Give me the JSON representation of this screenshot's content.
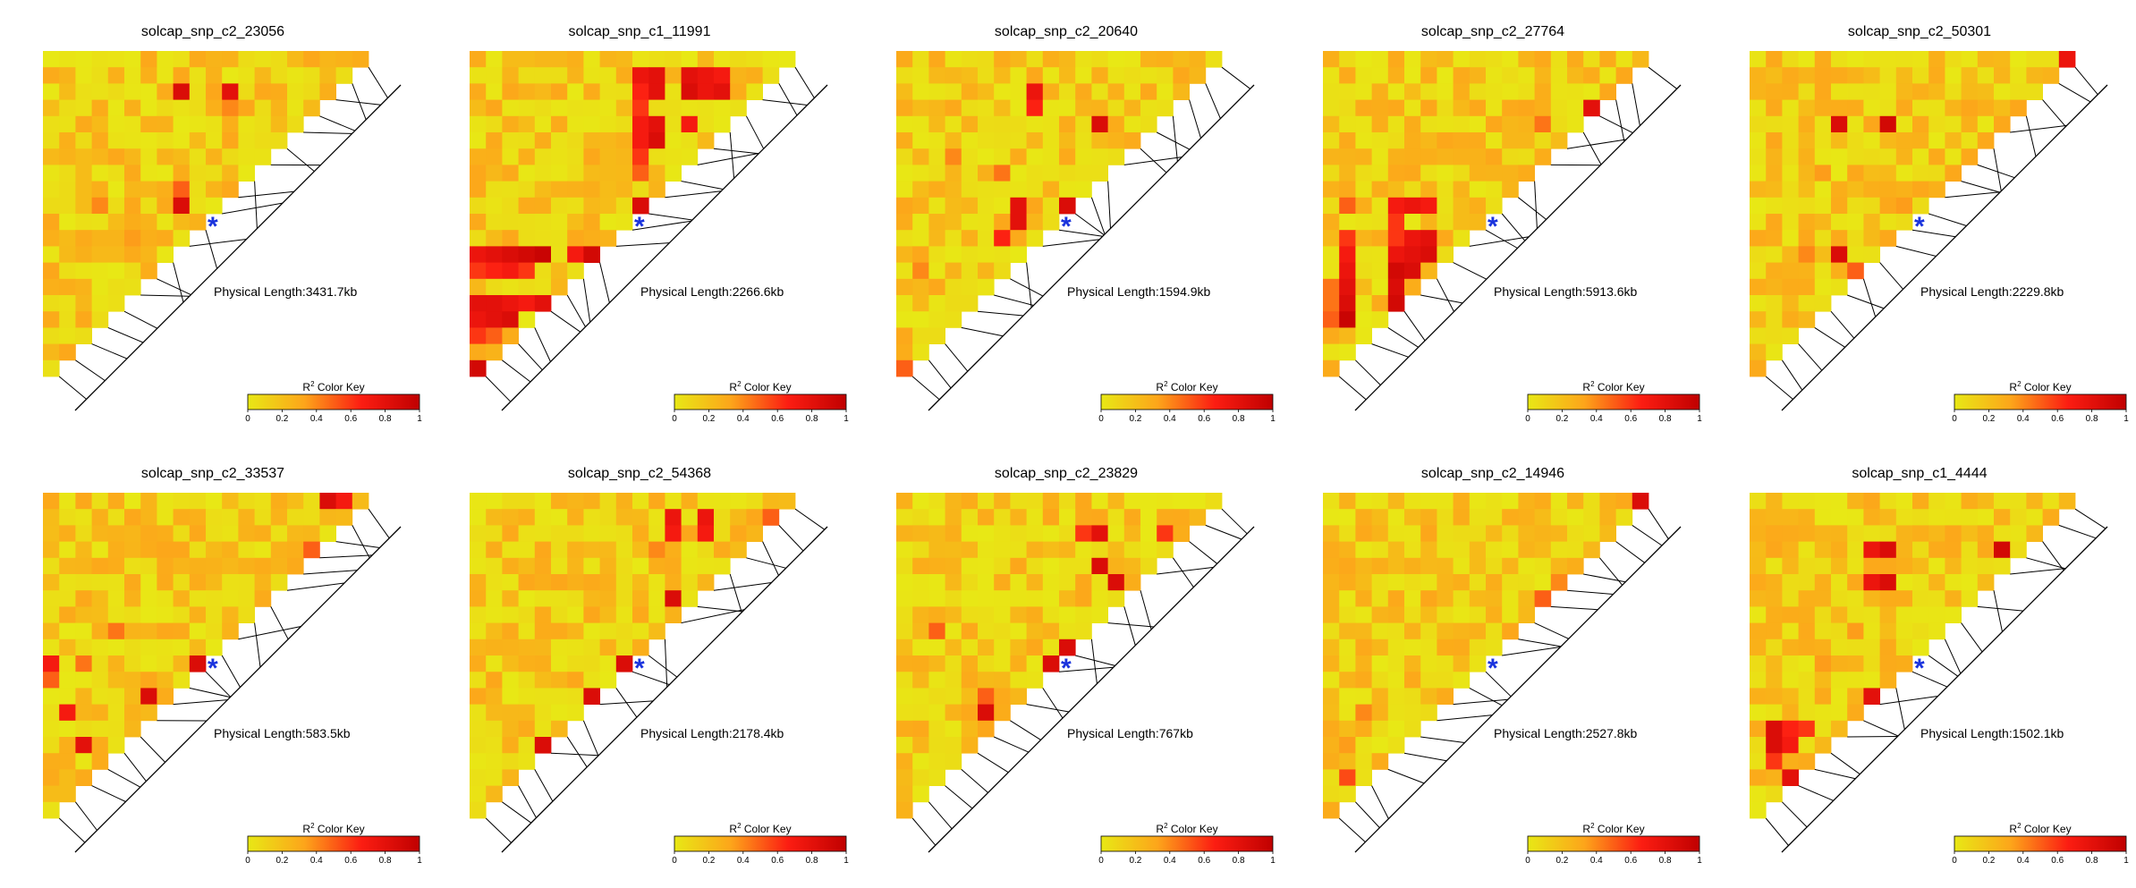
{
  "colors": {
    "ramp": [
      "#e8e815",
      "#fda51a",
      "#fc1d12",
      "#c00000"
    ],
    "marker": "#1a33dd",
    "line": "#000000"
  },
  "chart_data": [
    {
      "type": "heatmap",
      "title": "solcap_snp_c2_23056",
      "physical_length_label": "Physical Length:3431.7kb",
      "n_markers": 20,
      "focal_index": 10,
      "hot_cells": [
        [
          2,
          8,
          0.85
        ],
        [
          2,
          11,
          0.8
        ],
        [
          3,
          11,
          0.4
        ],
        [
          8,
          8,
          0.5
        ],
        [
          9,
          8,
          0.85
        ],
        [
          11,
          5,
          0.35
        ],
        [
          9,
          3,
          0.4
        ]
      ],
      "color_key": {
        "title_prefix": "R",
        "title_sup": "2",
        "title_suffix": " Color Key",
        "ticks": [
          "0",
          "0.2",
          "0.4",
          "0.6",
          "0.8",
          "1"
        ]
      }
    },
    {
      "type": "heatmap",
      "title": "solcap_snp_c1_11991",
      "physical_length_label": "Physical Length:2266.6kb",
      "n_markers": 20,
      "focal_index": 10,
      "hot_cells": [
        [
          1,
          10,
          0.75
        ],
        [
          1,
          11,
          0.8
        ],
        [
          1,
          13,
          0.8
        ],
        [
          1,
          14,
          0.75
        ],
        [
          1,
          15,
          0.7
        ],
        [
          2,
          10,
          0.65
        ],
        [
          2,
          11,
          0.8
        ],
        [
          2,
          13,
          0.85
        ],
        [
          2,
          14,
          0.75
        ],
        [
          2,
          15,
          0.8
        ],
        [
          3,
          10,
          0.6
        ],
        [
          4,
          10,
          0.7
        ],
        [
          4,
          11,
          0.8
        ],
        [
          4,
          13,
          0.7
        ],
        [
          5,
          10,
          0.7
        ],
        [
          5,
          11,
          0.85
        ],
        [
          6,
          10,
          0.6
        ],
        [
          7,
          10,
          0.5
        ],
        [
          9,
          10,
          0.85
        ],
        [
          12,
          0,
          0.75
        ],
        [
          12,
          1,
          0.8
        ],
        [
          12,
          2,
          0.85
        ],
        [
          12,
          3,
          0.9
        ],
        [
          12,
          4,
          0.95
        ],
        [
          12,
          6,
          0.7
        ],
        [
          12,
          7,
          0.9
        ],
        [
          13,
          0,
          0.6
        ],
        [
          13,
          1,
          0.65
        ],
        [
          13,
          2,
          0.7
        ],
        [
          13,
          3,
          0.6
        ],
        [
          15,
          0,
          0.8
        ],
        [
          15,
          1,
          0.8
        ],
        [
          15,
          2,
          0.75
        ],
        [
          15,
          3,
          0.7
        ],
        [
          15,
          4,
          0.8
        ],
        [
          16,
          0,
          0.75
        ],
        [
          16,
          1,
          0.8
        ],
        [
          16,
          2,
          0.85
        ],
        [
          17,
          0,
          0.6
        ],
        [
          17,
          1,
          0.5
        ],
        [
          19,
          0,
          0.9
        ]
      ],
      "color_key": {
        "title_prefix": "R",
        "title_sup": "2",
        "title_suffix": " Color Key",
        "ticks": [
          "0",
          "0.2",
          "0.4",
          "0.6",
          "0.8",
          "1"
        ]
      }
    },
    {
      "type": "heatmap",
      "title": "solcap_snp_c2_20640",
      "physical_length_label": "Physical Length:1594.9kb",
      "n_markers": 20,
      "focal_index": 10,
      "hot_cells": [
        [
          2,
          8,
          0.75
        ],
        [
          3,
          8,
          0.65
        ],
        [
          4,
          12,
          0.85
        ],
        [
          9,
          7,
          0.8
        ],
        [
          10,
          7,
          0.8
        ],
        [
          9,
          10,
          0.85
        ],
        [
          11,
          6,
          0.65
        ],
        [
          7,
          6,
          0.45
        ],
        [
          19,
          0,
          0.5
        ],
        [
          13,
          1,
          0.4
        ],
        [
          6,
          3,
          0.4
        ]
      ],
      "color_key": {
        "title_prefix": "R",
        "title_sup": "2",
        "title_suffix": " Color Key",
        "ticks": [
          "0",
          "0.2",
          "0.4",
          "0.6",
          "0.8",
          "1"
        ]
      }
    },
    {
      "type": "heatmap",
      "title": "solcap_snp_c2_27764",
      "physical_length_label": "Physical Length:5913.6kb",
      "n_markers": 20,
      "focal_index": 10,
      "hot_cells": [
        [
          3,
          16,
          0.8
        ],
        [
          4,
          13,
          0.45
        ],
        [
          9,
          4,
          0.7
        ],
        [
          9,
          5,
          0.75
        ],
        [
          9,
          6,
          0.7
        ],
        [
          10,
          4,
          0.6
        ],
        [
          11,
          4,
          0.6
        ],
        [
          11,
          5,
          0.75
        ],
        [
          11,
          6,
          0.8
        ],
        [
          12,
          4,
          0.75
        ],
        [
          12,
          5,
          0.8
        ],
        [
          12,
          6,
          0.85
        ],
        [
          13,
          1,
          0.75
        ],
        [
          13,
          4,
          0.9
        ],
        [
          13,
          5,
          0.85
        ],
        [
          14,
          1,
          0.8
        ],
        [
          14,
          4,
          0.85
        ],
        [
          15,
          1,
          0.85
        ],
        [
          15,
          4,
          0.9
        ],
        [
          16,
          1,
          0.95
        ],
        [
          16,
          0,
          0.5
        ],
        [
          9,
          1,
          0.5
        ],
        [
          11,
          1,
          0.6
        ],
        [
          12,
          1,
          0.7
        ],
        [
          14,
          0,
          0.45
        ],
        [
          15,
          0,
          0.45
        ]
      ],
      "color_key": {
        "title_prefix": "R",
        "title_sup": "2",
        "title_suffix": " Color Key",
        "ticks": [
          "0",
          "0.2",
          "0.4",
          "0.6",
          "0.8",
          "1"
        ]
      }
    },
    {
      "type": "heatmap",
      "title": "solcap_snp_c2_50301",
      "physical_length_label": "Physical Length:2229.8kb",
      "n_markers": 20,
      "focal_index": 10,
      "hot_cells": [
        [
          0,
          19,
          0.75
        ],
        [
          4,
          5,
          0.85
        ],
        [
          4,
          8,
          0.9
        ],
        [
          12,
          5,
          0.85
        ],
        [
          12,
          3,
          0.4
        ],
        [
          13,
          6,
          0.5
        ],
        [
          7,
          4,
          0.35
        ],
        [
          9,
          9,
          0.35
        ]
      ],
      "color_key": {
        "title_prefix": "R",
        "title_sup": "2",
        "title_suffix": " Color Key",
        "ticks": [
          "0",
          "0.2",
          "0.4",
          "0.6",
          "0.8",
          "1"
        ]
      }
    },
    {
      "type": "heatmap",
      "title": "solcap_snp_c2_33537",
      "physical_length_label": "Physical Length:583.5kb",
      "n_markers": 20,
      "focal_index": 10,
      "hot_cells": [
        [
          0,
          17,
          0.85
        ],
        [
          0,
          18,
          0.7
        ],
        [
          1,
          19,
          0.5
        ],
        [
          3,
          16,
          0.5
        ],
        [
          10,
          9,
          0.85
        ],
        [
          10,
          0,
          0.7
        ],
        [
          11,
          0,
          0.5
        ],
        [
          12,
          6,
          0.85
        ],
        [
          13,
          1,
          0.7
        ],
        [
          15,
          2,
          0.8
        ],
        [
          8,
          4,
          0.45
        ],
        [
          10,
          2,
          0.45
        ]
      ],
      "color_key": {
        "title_prefix": "R",
        "title_sup": "2",
        "title_suffix": " Color Key",
        "ticks": [
          "0",
          "0.2",
          "0.4",
          "0.6",
          "0.8",
          "1"
        ]
      }
    },
    {
      "type": "heatmap",
      "title": "solcap_snp_c2_54368",
      "physical_length_label": "Physical Length:2178.4kb",
      "n_markers": 20,
      "focal_index": 10,
      "hot_cells": [
        [
          1,
          12,
          0.75
        ],
        [
          1,
          14,
          0.75
        ],
        [
          2,
          12,
          0.7
        ],
        [
          2,
          14,
          0.7
        ],
        [
          1,
          18,
          0.5
        ],
        [
          6,
          12,
          0.85
        ],
        [
          10,
          9,
          0.85
        ],
        [
          12,
          7,
          0.85
        ],
        [
          15,
          4,
          0.85
        ],
        [
          3,
          11,
          0.4
        ]
      ],
      "color_key": {
        "title_prefix": "R",
        "title_sup": "2",
        "title_suffix": " Color Key",
        "ticks": [
          "0",
          "0.2",
          "0.4",
          "0.6",
          "0.8",
          "1"
        ]
      }
    },
    {
      "type": "heatmap",
      "title": "solcap_snp_c2_23829",
      "physical_length_label": "Physical Length:767kb",
      "n_markers": 20,
      "focal_index": 10,
      "hot_cells": [
        [
          2,
          11,
          0.6
        ],
        [
          2,
          12,
          0.8
        ],
        [
          4,
          12,
          0.85
        ],
        [
          2,
          16,
          0.6
        ],
        [
          5,
          13,
          0.85
        ],
        [
          8,
          2,
          0.5
        ],
        [
          9,
          10,
          0.85
        ],
        [
          10,
          9,
          0.85
        ],
        [
          13,
          5,
          0.85
        ],
        [
          12,
          5,
          0.5
        ]
      ],
      "color_key": {
        "title_prefix": "R",
        "title_sup": "2",
        "title_suffix": " Color Key",
        "ticks": [
          "0",
          "0.2",
          "0.4",
          "0.6",
          "0.8",
          "1"
        ]
      }
    },
    {
      "type": "heatmap",
      "title": "solcap_snp_c2_14946",
      "physical_length_label": "Physical Length:2527.8kb",
      "n_markers": 20,
      "focal_index": 10,
      "hot_cells": [
        [
          0,
          19,
          0.85
        ],
        [
          6,
          13,
          0.5
        ],
        [
          5,
          14,
          0.4
        ],
        [
          13,
          2,
          0.4
        ],
        [
          15,
          1,
          0.35
        ],
        [
          17,
          1,
          0.55
        ]
      ],
      "color_key": {
        "title_prefix": "R",
        "title_sup": "2",
        "title_suffix": " Color Key",
        "ticks": [
          "0",
          "0.2",
          "0.4",
          "0.6",
          "0.8",
          "1"
        ]
      }
    },
    {
      "type": "heatmap",
      "title": "solcap_snp_c1_4444",
      "physical_length_label": "Physical Length:1502.1kb",
      "n_markers": 20,
      "focal_index": 10,
      "hot_cells": [
        [
          3,
          7,
          0.75
        ],
        [
          3,
          8,
          0.85
        ],
        [
          3,
          15,
          0.9
        ],
        [
          5,
          7,
          0.75
        ],
        [
          5,
          8,
          0.85
        ],
        [
          12,
          7,
          0.8
        ],
        [
          14,
          1,
          0.85
        ],
        [
          14,
          2,
          0.65
        ],
        [
          14,
          3,
          0.6
        ],
        [
          15,
          1,
          0.85
        ],
        [
          15,
          2,
          0.7
        ],
        [
          16,
          1,
          0.6
        ],
        [
          17,
          2,
          0.8
        ],
        [
          8,
          6,
          0.35
        ],
        [
          10,
          4,
          0.35
        ]
      ],
      "color_key": {
        "title_prefix": "R",
        "title_sup": "2",
        "title_suffix": " Color Key",
        "ticks": [
          "0",
          "0.2",
          "0.4",
          "0.6",
          "0.8",
          "1"
        ]
      }
    }
  ]
}
